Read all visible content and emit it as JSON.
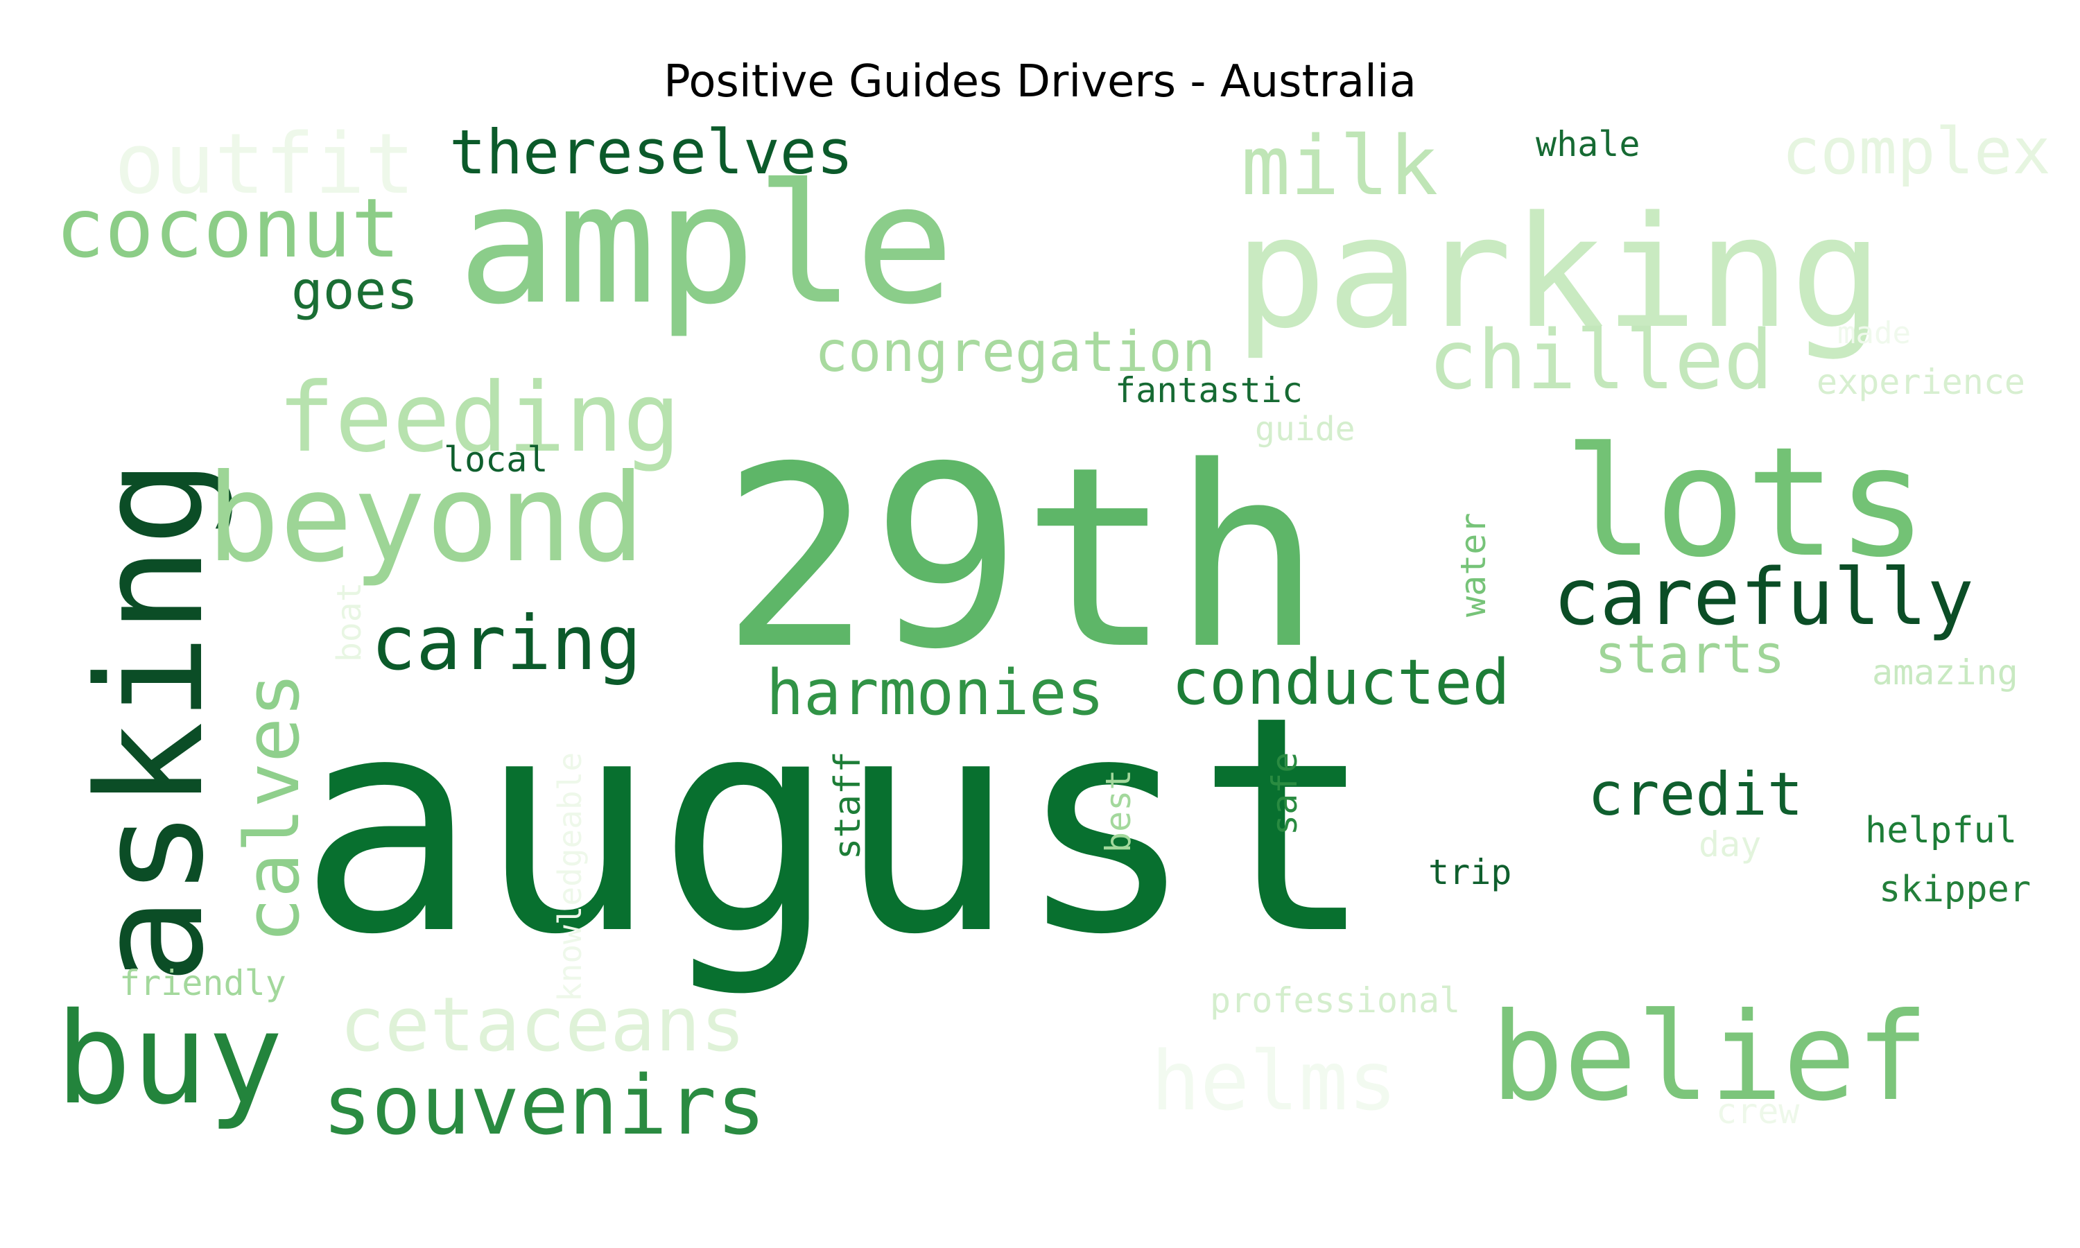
{
  "title": "Positive Guides Drivers - Australia",
  "palette": "Greens",
  "words": [
    {
      "text": "august",
      "color": "#08702f",
      "vertical": false
    },
    {
      "text": "29th",
      "color": "#5eb668",
      "vertical": false
    },
    {
      "text": "ample",
      "color": "#8bcd8a",
      "vertical": false
    },
    {
      "text": "parking",
      "color": "#c9eac1",
      "vertical": false
    },
    {
      "text": "asking",
      "color": "#0b4d26",
      "vertical": true
    },
    {
      "text": "lots",
      "color": "#73c275",
      "vertical": false
    },
    {
      "text": "beyond",
      "color": "#9dd596",
      "vertical": false
    },
    {
      "text": "belief",
      "color": "#7cc57b",
      "vertical": false
    },
    {
      "text": "buy",
      "color": "#23843c",
      "vertical": false
    },
    {
      "text": "carefully",
      "color": "#0b4d26",
      "vertical": false
    },
    {
      "text": "feeding",
      "color": "#b7e2ae",
      "vertical": false
    },
    {
      "text": "coconut",
      "color": "#8ccd87",
      "vertical": false
    },
    {
      "text": "milk",
      "color": "#bfe5b6",
      "vertical": false
    },
    {
      "text": "chilled",
      "color": "#c3e7bb",
      "vertical": false
    },
    {
      "text": "outfit",
      "color": "#eef8ea",
      "vertical": false
    },
    {
      "text": "complex",
      "color": "#e6f5e0",
      "vertical": false
    },
    {
      "text": "thereselves",
      "color": "#0b5a2a",
      "vertical": false
    },
    {
      "text": "calves",
      "color": "#8fcf8c",
      "vertical": true
    },
    {
      "text": "caring",
      "color": "#0b5a2a",
      "vertical": false
    },
    {
      "text": "souvenirs",
      "color": "#2a8b41",
      "vertical": false
    },
    {
      "text": "cetaceans",
      "color": "#dff2d8",
      "vertical": false
    },
    {
      "text": "helms",
      "color": "#f2faf0",
      "vertical": false
    },
    {
      "text": "harmonies",
      "color": "#319346",
      "vertical": false
    },
    {
      "text": "conducted",
      "color": "#1d7d37",
      "vertical": false
    },
    {
      "text": "congregation",
      "color": "#a8da9f",
      "vertical": false
    },
    {
      "text": "credit",
      "color": "#0f5f2e",
      "vertical": false
    },
    {
      "text": "starts",
      "color": "#9fd598",
      "vertical": false
    },
    {
      "text": "goes",
      "color": "#1a6e34",
      "vertical": false
    },
    {
      "text": "whale",
      "color": "#166a33",
      "vertical": false
    },
    {
      "text": "fantastic",
      "color": "#166a33",
      "vertical": false
    },
    {
      "text": "local",
      "color": "#0f5f2e",
      "vertical": false
    },
    {
      "text": "guide",
      "color": "#d4eecd",
      "vertical": false
    },
    {
      "text": "made",
      "color": "#f0f9ed",
      "vertical": false
    },
    {
      "text": "experience",
      "color": "#d7efd0",
      "vertical": false
    },
    {
      "text": "amazing",
      "color": "#c8e9c1",
      "vertical": false
    },
    {
      "text": "water",
      "color": "#76c378",
      "vertical": true
    },
    {
      "text": "boat",
      "color": "#e8f6e3",
      "vertical": true
    },
    {
      "text": "knowledgeable",
      "color": "#eef8ea",
      "vertical": true
    },
    {
      "text": "staff",
      "color": "#1d7d37",
      "vertical": true
    },
    {
      "text": "best",
      "color": "#a3d89c",
      "vertical": true
    },
    {
      "text": "safe",
      "color": "#2a8b41",
      "vertical": true
    },
    {
      "text": "trip",
      "color": "#0f5f2e",
      "vertical": false
    },
    {
      "text": "day",
      "color": "#e3f4dd",
      "vertical": false
    },
    {
      "text": "helpful",
      "color": "#1d7d37",
      "vertical": false
    },
    {
      "text": "skipper",
      "color": "#237f3a",
      "vertical": false
    },
    {
      "text": "friendly",
      "color": "#a3d89c",
      "vertical": false
    },
    {
      "text": "professional",
      "color": "#d4eecd",
      "vertical": false
    },
    {
      "text": "crew",
      "color": "#eef8ea",
      "vertical": false
    }
  ]
}
